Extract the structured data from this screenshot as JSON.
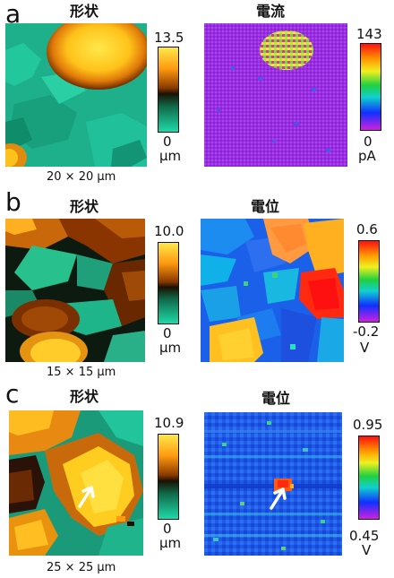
{
  "panels": [
    {
      "letter": "a",
      "left_title": "形状",
      "right_title": "電流",
      "left_bar": {
        "max": "13.5",
        "min": "0",
        "unit": "μm"
      },
      "right_bar": {
        "max": "143",
        "min": "0",
        "unit": "pA"
      },
      "scale": "20 × 20 μm"
    },
    {
      "letter": "b",
      "left_title": "形状",
      "right_title": "電位",
      "left_bar": {
        "max": "10.0",
        "min": "0",
        "unit": "μm"
      },
      "right_bar": {
        "max": "0.6",
        "min": "-0.2",
        "unit": "V"
      },
      "scale": "15 × 15 μm"
    },
    {
      "letter": "c",
      "left_title": "形状",
      "right_title": "電位",
      "left_bar": {
        "max": "10.9",
        "min": "0",
        "unit": "μm"
      },
      "right_bar": {
        "max": "0.95",
        "min": "0.45",
        "unit": "V"
      },
      "scale": "25 × 25 μm"
    }
  ],
  "colors": {
    "topo_high": "#ffd21f",
    "topo_mid": "#8a3a00",
    "topo_low": "#1fd9a8",
    "current_bg": "#9a2fe0",
    "potential_bg": "#1e6cf0"
  }
}
